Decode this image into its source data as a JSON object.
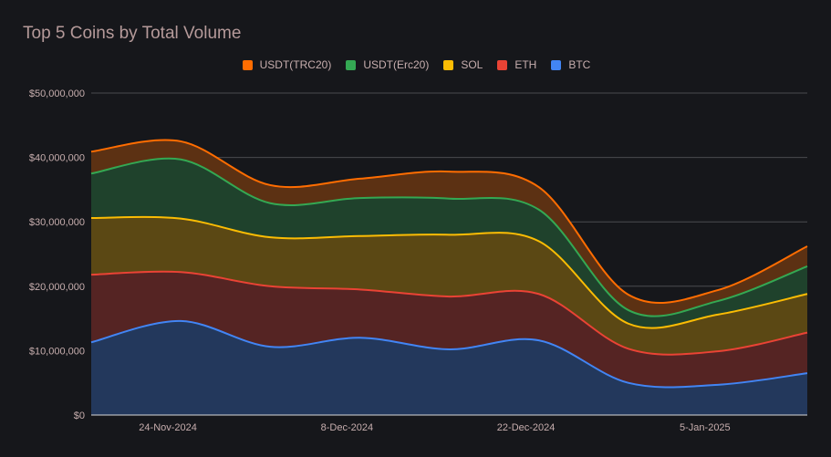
{
  "chart_data": {
    "type": "area",
    "stacked": true,
    "title": "Top 5 Coins by Total Volume",
    "legend_position": "top",
    "grid": true,
    "ylim": [
      0,
      50000000
    ],
    "y_ticks": [
      "$0",
      "$10,000,000",
      "$20,000,000",
      "$30,000,000",
      "$40,000,000",
      "$50,000,000"
    ],
    "x_ticks": [
      "24-Nov-2024",
      "8-Dec-2024",
      "22-Dec-2024",
      "5-Jan-2025"
    ],
    "x": [
      "2024-11-18",
      "2024-11-25",
      "2024-12-02",
      "2024-12-09",
      "2024-12-16",
      "2024-12-23",
      "2024-12-30",
      "2025-01-06",
      "2025-01-13"
    ],
    "legend": [
      "USDT(TRC20)",
      "USDT(Erc20)",
      "SOL",
      "ETH",
      "BTC"
    ],
    "series": [
      {
        "name": "BTC",
        "color": "#4285f4",
        "fill": "#23385c",
        "values": [
          11300000,
          14600000,
          10600000,
          12000000,
          10200000,
          11600000,
          5000000,
          4700000,
          6500000
        ]
      },
      {
        "name": "ETH",
        "color": "#ea4335",
        "fill": "#552423",
        "values": [
          10500000,
          7600000,
          9400000,
          7500000,
          8200000,
          7200000,
          5300000,
          5200000,
          6300000
        ]
      },
      {
        "name": "SOL",
        "color": "#fbbc04",
        "fill": "#5b4814",
        "values": [
          8800000,
          8300000,
          7600000,
          8300000,
          9600000,
          8200000,
          3900000,
          5700000,
          6000000
        ]
      },
      {
        "name": "USDT(Erc20)",
        "color": "#34a853",
        "fill": "#1f422c",
        "values": [
          6900000,
          9200000,
          5300000,
          5900000,
          5600000,
          4900000,
          2100000,
          2100000,
          4300000
        ]
      },
      {
        "name": "USDT(TRC20)",
        "color": "#ff6d01",
        "fill": "#5c3113",
        "values": [
          3400000,
          2800000,
          2800000,
          3000000,
          4200000,
          3500000,
          2400000,
          1700000,
          3100000
        ]
      }
    ]
  }
}
